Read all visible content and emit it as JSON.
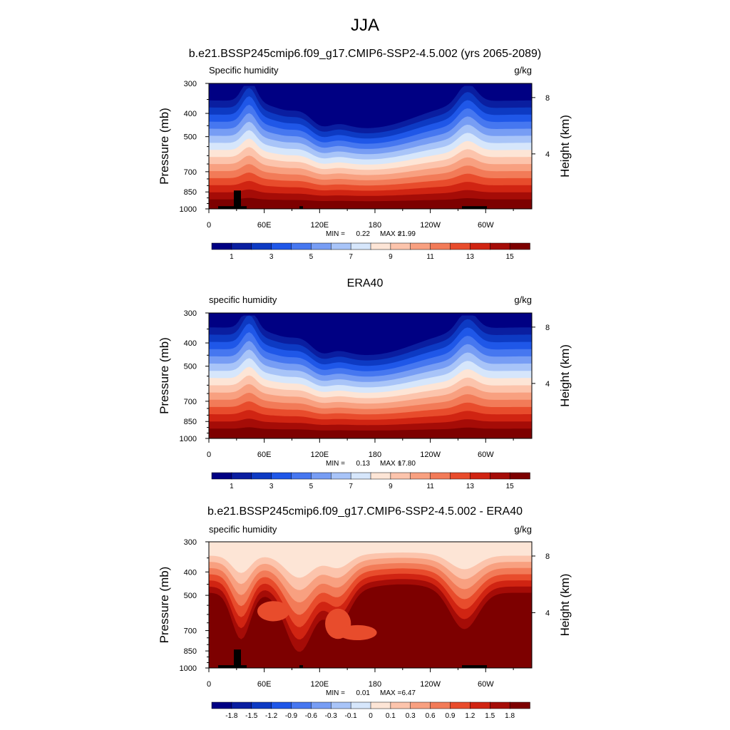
{
  "figure_title": "JJA",
  "chart_data": [
    {
      "type": "heatmap",
      "title": "b.e21.BSSP245cmip6.f09_g17.CMIP6-SSP2-4.5.002 (yrs 2065-2089)",
      "left_label": "Specific humidity",
      "units": "g/kg",
      "ylabel": "Pressure (mb)",
      "ylabel_right": "Height (km)",
      "x_ticks": [
        "0",
        "60E",
        "120E",
        "180",
        "120W",
        "60W"
      ],
      "y_ticks": [
        "300",
        "400",
        "500",
        "700",
        "850",
        "1000"
      ],
      "height_ticks": [
        "8",
        "4"
      ],
      "min_label": "MIN =",
      "min": "0.22",
      "max_label": "MAX =",
      "max": "21.99",
      "colorbar_labels": [
        "1",
        "3",
        "5",
        "7",
        "9",
        "11",
        "13",
        "15"
      ],
      "colors": [
        "#000083",
        "#0a1ea0",
        "#0d3ac3",
        "#1f57e8",
        "#4677f0",
        "#779df4",
        "#a8c4f8",
        "#d6e6fb",
        "#fde5d6",
        "#fcc4ac",
        "#f8a080",
        "#f27b58",
        "#e84c2c",
        "#d02412",
        "#a50c07",
        "#7d0000"
      ]
    },
    {
      "type": "heatmap",
      "title": "ERA40",
      "left_label": "specific humidity",
      "units": "g/kg",
      "ylabel": "Pressure (mb)",
      "ylabel_right": "Height (km)",
      "x_ticks": [
        "0",
        "60E",
        "120E",
        "180",
        "120W",
        "60W"
      ],
      "y_ticks": [
        "300",
        "400",
        "500",
        "700",
        "850",
        "1000"
      ],
      "height_ticks": [
        "8",
        "4"
      ],
      "min_label": "MIN =",
      "min": "0.13",
      "max_label": "MAX =",
      "max": "17.80",
      "colorbar_labels": [
        "1",
        "3",
        "5",
        "7",
        "9",
        "11",
        "13",
        "15"
      ],
      "colors": [
        "#000083",
        "#0a1ea0",
        "#0d3ac3",
        "#1f57e8",
        "#4677f0",
        "#779df4",
        "#a8c4f8",
        "#d6e6fb",
        "#fde5d6",
        "#fcc4ac",
        "#f8a080",
        "#f27b58",
        "#e84c2c",
        "#d02412",
        "#a50c07",
        "#7d0000"
      ]
    },
    {
      "type": "heatmap",
      "title": "b.e21.BSSP245cmip6.f09_g17.CMIP6-SSP2-4.5.002 - ERA40",
      "left_label": "specific humidity",
      "units": "g/kg",
      "ylabel": "Pressure (mb)",
      "ylabel_right": "Height (km)",
      "x_ticks": [
        "0",
        "60E",
        "120E",
        "180",
        "120W",
        "60W"
      ],
      "y_ticks": [
        "300",
        "400",
        "500",
        "700",
        "850",
        "1000"
      ],
      "height_ticks": [
        "8",
        "4"
      ],
      "min_label": "MIN =",
      "min": "0.01",
      "max_label": "MAX =",
      "max": "6.47",
      "colorbar_labels": [
        "-1.8",
        "-1.5",
        "-1.2",
        "-0.9",
        "-0.6",
        "-0.3",
        "-0.1",
        "0",
        "0.1",
        "0.3",
        "0.6",
        "0.9",
        "1.2",
        "1.5",
        "1.8"
      ],
      "colors": [
        "#000083",
        "#0a1ea0",
        "#0d3ac3",
        "#1f57e8",
        "#4677f0",
        "#779df4",
        "#a8c4f8",
        "#d6e6fb",
        "#fde5d6",
        "#fcc4ac",
        "#f8a080",
        "#f27b58",
        "#e84c2c",
        "#d02412",
        "#a50c07",
        "#7d0000"
      ]
    }
  ]
}
